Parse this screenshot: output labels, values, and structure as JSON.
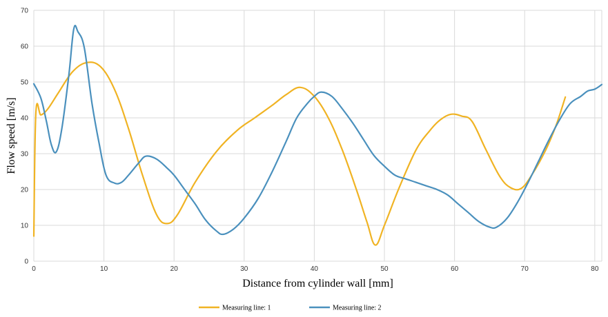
{
  "chart_data": {
    "type": "line",
    "xlabel": "Distance from cylinder wall [mm]",
    "ylabel": "Flow speed [m/s]",
    "xlim": [
      0,
      81
    ],
    "ylim": [
      0,
      70
    ],
    "xticks": [
      0,
      10,
      20,
      30,
      40,
      50,
      60,
      70,
      80
    ],
    "yticks": [
      0,
      10,
      20,
      30,
      40,
      50,
      60,
      70
    ],
    "grid": true,
    "legend_position": "bottom",
    "series": [
      {
        "name": "Measuring line: 1",
        "color": "#f0b323",
        "points": [
          [
            0,
            7
          ],
          [
            0.3,
            41.5
          ],
          [
            1,
            40.8
          ],
          [
            2,
            42.5
          ],
          [
            3.5,
            47
          ],
          [
            5.5,
            52.8
          ],
          [
            7.5,
            55.4
          ],
          [
            9.5,
            54.3
          ],
          [
            11.5,
            48
          ],
          [
            13.5,
            37
          ],
          [
            15.5,
            24
          ],
          [
            17.5,
            13
          ],
          [
            19,
            10.5
          ],
          [
            20.5,
            13
          ],
          [
            23,
            22
          ],
          [
            26,
            30.5
          ],
          [
            29,
            36.5
          ],
          [
            31.5,
            40
          ],
          [
            34,
            43.5
          ],
          [
            36,
            46.5
          ],
          [
            38,
            48.5
          ],
          [
            40,
            46
          ],
          [
            42,
            40
          ],
          [
            44,
            31
          ],
          [
            46,
            20
          ],
          [
            47.5,
            11
          ],
          [
            48.7,
            4.5
          ],
          [
            50,
            10
          ],
          [
            52,
            20
          ],
          [
            54.5,
            31
          ],
          [
            56.5,
            36.5
          ],
          [
            58,
            39.5
          ],
          [
            59.5,
            41
          ],
          [
            61,
            40.5
          ],
          [
            62.5,
            39
          ],
          [
            64.5,
            31
          ],
          [
            66.5,
            23.5
          ],
          [
            68,
            20.5
          ],
          [
            69.5,
            20.3
          ],
          [
            71,
            24
          ],
          [
            73,
            31
          ],
          [
            74.5,
            38
          ],
          [
            75.8,
            45.8
          ]
        ]
      },
      {
        "name": "Measuring line: 2",
        "color": "#4a90bd",
        "points": [
          [
            0,
            49.5
          ],
          [
            1,
            45.5
          ],
          [
            1.8,
            39
          ],
          [
            2.5,
            32.5
          ],
          [
            3.2,
            30.5
          ],
          [
            4,
            37
          ],
          [
            5,
            52
          ],
          [
            5.7,
            64.8
          ],
          [
            6.3,
            64
          ],
          [
            7.2,
            59.5
          ],
          [
            8.3,
            44
          ],
          [
            9.3,
            33
          ],
          [
            10.3,
            24
          ],
          [
            11.5,
            21.8
          ],
          [
            12.5,
            22
          ],
          [
            13.5,
            24
          ],
          [
            15,
            27.5
          ],
          [
            16,
            29.3
          ],
          [
            17.5,
            28.5
          ],
          [
            19,
            26
          ],
          [
            20,
            24
          ],
          [
            21.5,
            20
          ],
          [
            23,
            16
          ],
          [
            24.5,
            11.5
          ],
          [
            26,
            8.5
          ],
          [
            27,
            7.5
          ],
          [
            28.5,
            9
          ],
          [
            30,
            12
          ],
          [
            32,
            17.5
          ],
          [
            34,
            25
          ],
          [
            36,
            33.5
          ],
          [
            37.5,
            40
          ],
          [
            39,
            44
          ],
          [
            40,
            46
          ],
          [
            41,
            47.2
          ],
          [
            42.5,
            46
          ],
          [
            44,
            42.5
          ],
          [
            45.5,
            38.5
          ],
          [
            47,
            34
          ],
          [
            48.5,
            29.5
          ],
          [
            50,
            26.5
          ],
          [
            51.5,
            24
          ],
          [
            53,
            23
          ],
          [
            54.5,
            22
          ],
          [
            56,
            21
          ],
          [
            57.5,
            20
          ],
          [
            59,
            18.5
          ],
          [
            60.5,
            16
          ],
          [
            62,
            13.5
          ],
          [
            63.5,
            11
          ],
          [
            65,
            9.5
          ],
          [
            66,
            9.5
          ],
          [
            67.5,
            12
          ],
          [
            69,
            16.5
          ],
          [
            70.5,
            22
          ],
          [
            72,
            28
          ],
          [
            73.5,
            34
          ],
          [
            75,
            39.5
          ],
          [
            76.5,
            44
          ],
          [
            78,
            46
          ],
          [
            79,
            47.5
          ],
          [
            80,
            48
          ],
          [
            81,
            49.3
          ]
        ]
      }
    ]
  }
}
